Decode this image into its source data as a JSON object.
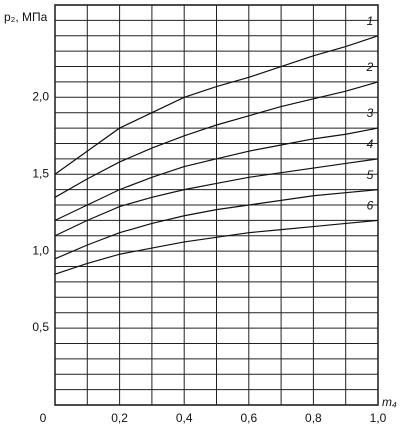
{
  "chart_data": {
    "type": "line",
    "y_label": "p₂, МПа",
    "x_label": "m₄",
    "x": [
      0,
      0.1,
      0.2,
      0.3,
      0.4,
      0.5,
      0.6,
      0.7,
      0.8,
      0.9,
      1.0
    ],
    "series": [
      {
        "name": "1",
        "color": "#111111",
        "values": [
          1.5,
          1.65,
          1.8,
          1.9,
          2.0,
          2.07,
          2.13,
          2.2,
          2.27,
          2.33,
          2.4
        ]
      },
      {
        "name": "2",
        "color": "#111111",
        "values": [
          1.35,
          1.47,
          1.58,
          1.67,
          1.75,
          1.82,
          1.88,
          1.94,
          1.99,
          2.04,
          2.1
        ]
      },
      {
        "name": "3",
        "color": "#111111",
        "values": [
          1.2,
          1.3,
          1.4,
          1.48,
          1.55,
          1.6,
          1.65,
          1.69,
          1.73,
          1.76,
          1.8
        ]
      },
      {
        "name": "4",
        "color": "#111111",
        "values": [
          1.1,
          1.2,
          1.29,
          1.35,
          1.4,
          1.44,
          1.48,
          1.51,
          1.54,
          1.57,
          1.6
        ]
      },
      {
        "name": "5",
        "color": "#111111",
        "values": [
          0.95,
          1.04,
          1.12,
          1.18,
          1.23,
          1.27,
          1.3,
          1.33,
          1.36,
          1.38,
          1.4
        ]
      },
      {
        "name": "6",
        "color": "#111111",
        "values": [
          0.85,
          0.92,
          0.98,
          1.02,
          1.06,
          1.09,
          1.12,
          1.14,
          1.16,
          1.18,
          1.2
        ]
      }
    ],
    "xlim": [
      0,
      1.0
    ],
    "ylim": [
      0,
      2.6
    ],
    "xticks": [
      0,
      {
        "value": 0.2,
        "label": "0,2"
      },
      {
        "value": 0.4,
        "label": "0,4"
      },
      {
        "value": 0.6,
        "label": "0,6"
      },
      {
        "value": 0.8,
        "label": "0,8"
      },
      {
        "value": 1.0,
        "label": "1,0"
      }
    ],
    "yticks": [
      {
        "value": 0.5,
        "label": "0,5"
      },
      {
        "value": 1.0,
        "label": "1,0"
      },
      {
        "value": 1.5,
        "label": "1,5"
      },
      {
        "value": 2.0,
        "label": "2,0"
      }
    ],
    "xgrid": [
      0.1,
      0.3,
      0.5,
      0.7,
      0.9
    ],
    "ygrid": [
      0.1,
      0.2,
      0.3,
      0.4,
      0.6,
      0.7,
      0.8,
      0.9,
      1.1,
      1.2,
      1.3,
      1.4,
      1.6,
      1.7,
      1.8,
      1.9,
      2.1,
      2.2,
      2.3,
      2.4,
      2.5
    ]
  }
}
